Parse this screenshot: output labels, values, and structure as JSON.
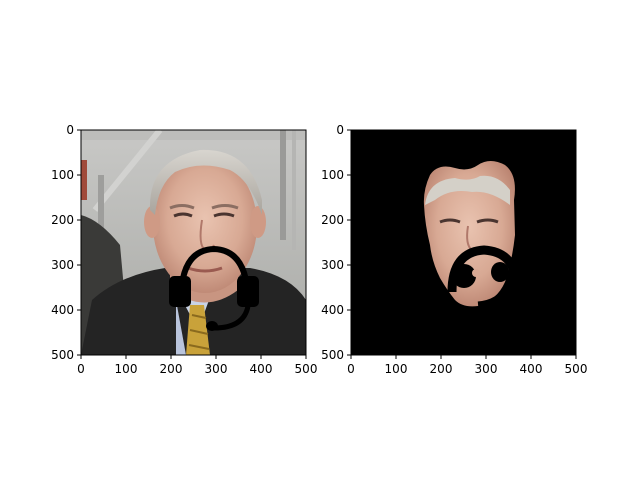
{
  "figure": {
    "panels": [
      {
        "name": "original-photo",
        "x_ticks": [
          "0",
          "100",
          "200",
          "300",
          "400",
          "500"
        ],
        "y_ticks": [
          "0",
          "100",
          "200",
          "300",
          "400",
          "500"
        ],
        "content": "photo"
      },
      {
        "name": "face-mask",
        "x_ticks": [
          "0",
          "100",
          "200",
          "300",
          "400",
          "500"
        ],
        "y_ticks": [
          "0",
          "100",
          "200",
          "300",
          "400",
          "500"
        ],
        "content": "mask"
      }
    ],
    "axis_range": [
      0,
      500
    ]
  }
}
